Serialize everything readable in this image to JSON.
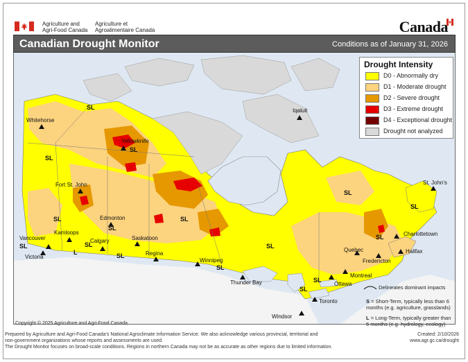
{
  "header": {
    "agency_en_line1": "Agriculture and",
    "agency_en_line2": "Agri-Food Canada",
    "agency_fr_line1": "Agriculture et",
    "agency_fr_line2": "Agroalimentaire Canada",
    "wordmark": "Canada"
  },
  "titlebar": {
    "title": "Canadian Drought Monitor",
    "conditions": "Conditions as of January 31, 2026"
  },
  "legend": {
    "title": "Drought Intensity",
    "items": [
      {
        "label": "D0 - Abnormally dry",
        "color": "#ffff00"
      },
      {
        "label": "D1 - Moderate drought",
        "color": "#fcd37f"
      },
      {
        "label": "D2 - Severe drought",
        "color": "#e69800"
      },
      {
        "label": "D3 - Extreme drought",
        "color": "#e60000"
      },
      {
        "label": "D4 - Exceptional drought",
        "color": "#730000"
      },
      {
        "label": "Drought not analyzed",
        "color": "#d9d9d9"
      }
    ]
  },
  "impacts_legend": {
    "line": "Delineates dominant impacts",
    "s_key": "S",
    "s_text": "= Short-Term, typically less than 6 months (e.g. agriculture, grasslands)",
    "l_key": "L",
    "l_text": "= Long-Term, typically greater than 6 months (e.g. hydrology, ecology)"
  },
  "cities": {
    "whitehorse": "Whitehorse",
    "yellowknife": "Yellowknife",
    "iqaluit": "Iqaluit",
    "fort_st_john": "Fort St. John",
    "edmonton": "Edmonton",
    "kamloops": "Kamloops",
    "calgary": "Calgary",
    "saskatoon": "Saskatoon",
    "vancouver": "Vancouver",
    "victoria": "Victoria",
    "regina": "Regina",
    "winnipeg": "Winnipeg",
    "thunder_bay": "Thunder Bay",
    "quebec": "Quebec",
    "montreal": "Montreal",
    "ottawa": "Ottawa",
    "toronto": "Toronto",
    "windsor": "Windsor",
    "fredericton": "Fredericton",
    "halifax": "Halifax",
    "charlottetown": "Charlottetown",
    "st_johns": "St. John's"
  },
  "impact_labels": {
    "sl": "SL",
    "l": "L"
  },
  "copyright": "Copyright © 2025 Agriculture and Agri-Food Canada",
  "footer": {
    "line1": "Prepared by Agriculture and Agri-Food Canada's National Agroclimate Information Service.  We also acknowledge various provincial, territorial and",
    "line2": "non-government organizations whose reports and assessments are used.",
    "line3": "The Drought Monitor focuses on broad-scale conditions.  Regions in northern Canada may not be as accurate as other regions due to limited information.",
    "created": "Created: 2/10/2026",
    "url": "www.agr.gc.ca/drought"
  }
}
